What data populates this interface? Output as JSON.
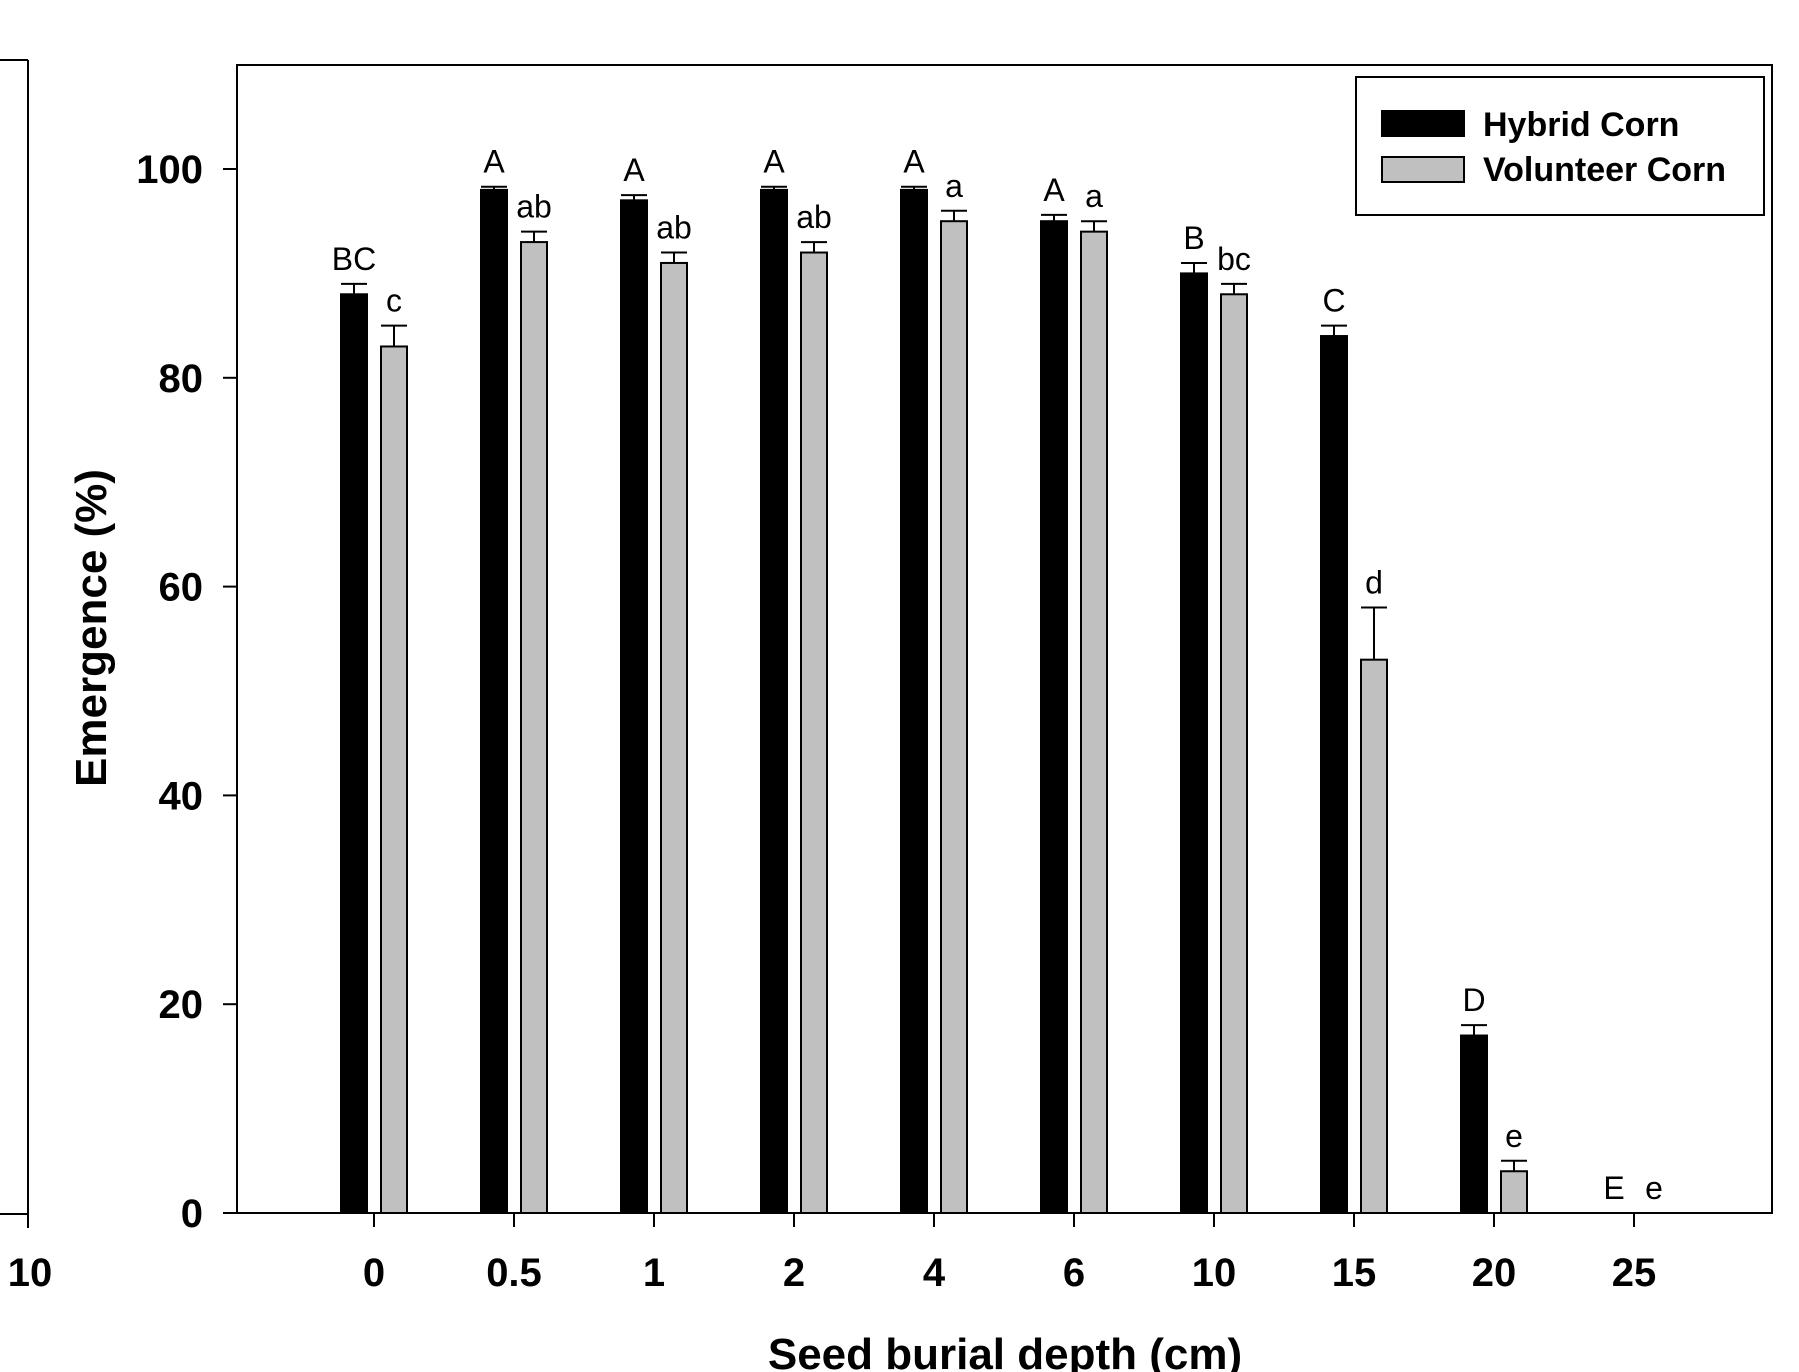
{
  "chart_data": {
    "type": "bar",
    "title": "",
    "xlabel": "Seed burial depth (cm)",
    "ylabel": "Emergence (%)",
    "ylim": [
      0,
      110
    ],
    "yticks": [
      "0",
      "20",
      "40",
      "60",
      "80",
      "100"
    ],
    "categories": [
      "0",
      "0.5",
      "1",
      "2",
      "4",
      "6",
      "10",
      "15",
      "20",
      "25"
    ],
    "legend_position": "top-right",
    "grid": false,
    "series": [
      {
        "name": "Hybrid Corn",
        "color": "#000000",
        "values": [
          88,
          98,
          97,
          98,
          98,
          95,
          90,
          84,
          17,
          0
        ],
        "errors": [
          1,
          0.3,
          0.5,
          0.3,
          0.3,
          0.6,
          1,
          1,
          1,
          0
        ],
        "letters": [
          "BC",
          "A",
          "A",
          "A",
          "A",
          "A",
          "B",
          "C",
          "D",
          "E"
        ]
      },
      {
        "name": "Volunteer Corn",
        "color": "#c0c0c0",
        "values": [
          83,
          93,
          91,
          92,
          95,
          94,
          88,
          53,
          4,
          0
        ],
        "errors": [
          2,
          1,
          1,
          1,
          1,
          1,
          1,
          5,
          1,
          0
        ],
        "letters": [
          "c",
          "ab",
          "ab",
          "ab",
          "a",
          "a",
          "bc",
          "d",
          "e",
          "e"
        ]
      }
    ],
    "left_panel_fragment": {
      "tick_label": "10"
    }
  }
}
